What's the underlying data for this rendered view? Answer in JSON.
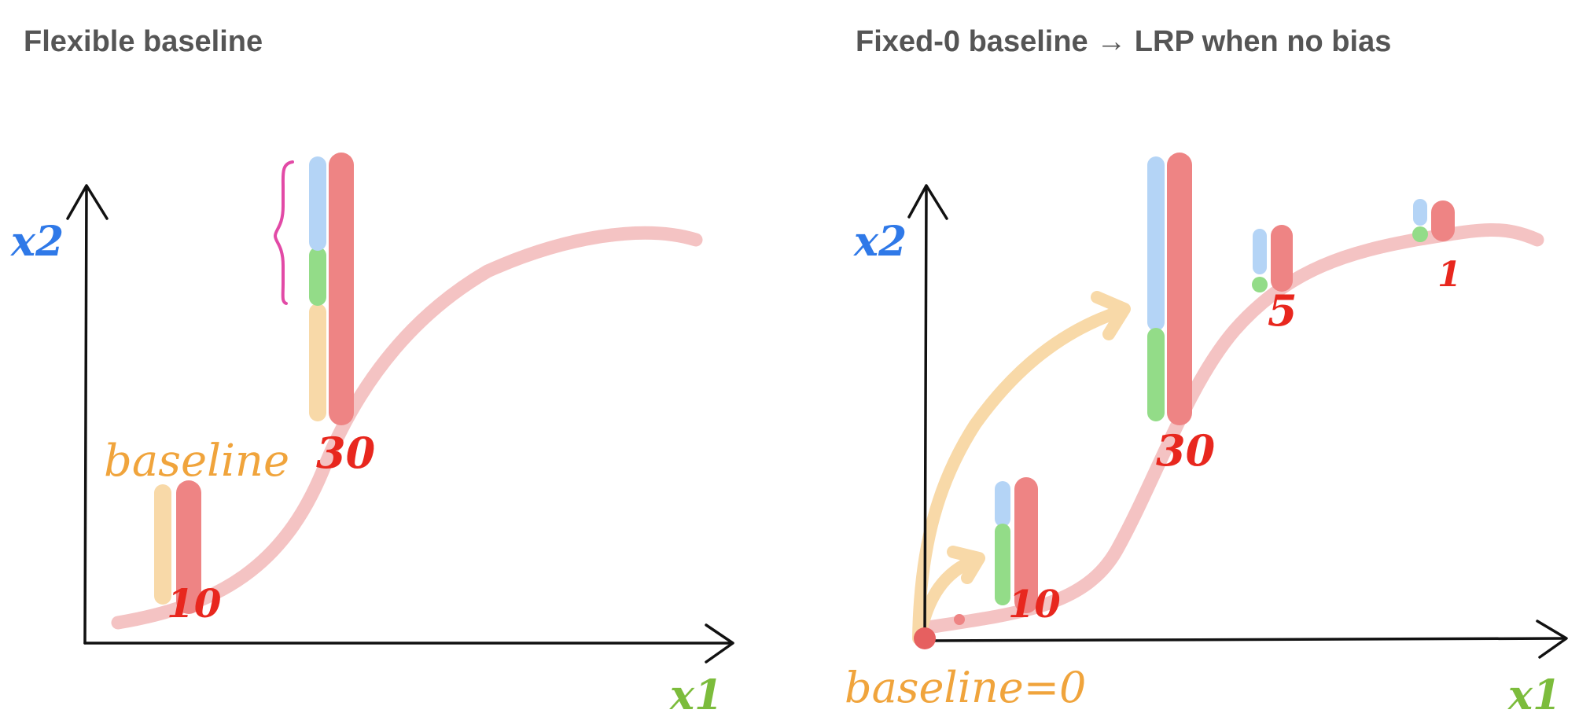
{
  "left_panel": {
    "title": "Flexible baseline",
    "y_axis_label": "x2",
    "x_axis_label": "x1",
    "baseline_label": "baseline",
    "bar_values": [
      "10",
      "30"
    ]
  },
  "right_panel": {
    "title": "Fixed-0 baseline → LRP when no bias",
    "y_axis_label": "x2",
    "x_axis_label": "x1",
    "baseline_label": "baseline=0",
    "bar_values": [
      "10",
      "30",
      "5",
      "1"
    ]
  },
  "colors": {
    "curve": "#f4c3c3",
    "output_bar": "#ee8484",
    "x2_contribution": "#b4d4f6",
    "x1_contribution": "#93dc88",
    "baseline_contribution": "#f8d9a8",
    "value_text": "#e8271e",
    "x2_label": "#2f79e8",
    "x1_label": "#7cbc3c",
    "baseline_text": "#f0a43c",
    "brace": "#e24aa6",
    "axis": "#111111"
  }
}
